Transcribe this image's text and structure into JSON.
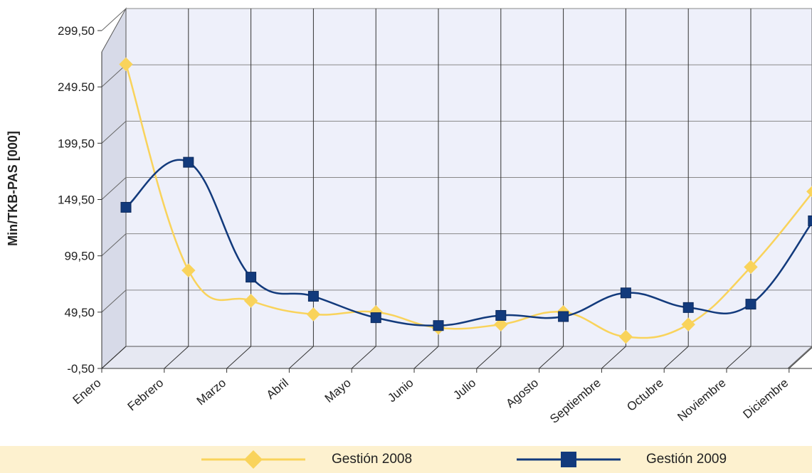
{
  "chart_data": {
    "type": "line",
    "ylabel": "Min/TKB-PAS [000]",
    "xlabel": "",
    "categories": [
      "Enero",
      "Febrero",
      "Marzo",
      "Abril",
      "Mayo",
      "Junio",
      "Julio",
      "Agosto",
      "Septiembre",
      "Octubre",
      "Noviembre",
      "Diciembre"
    ],
    "y_ticks": [
      "-0,50",
      "49,50",
      "99,50",
      "149,50",
      "199,50",
      "249.50",
      "299,50"
    ],
    "ylim": [
      -0.5,
      299.5
    ],
    "grid": true,
    "legend_position": "bottom",
    "series": [
      {
        "name": "Gestión 2008",
        "color": "#f9d35b",
        "marker": "diamond",
        "values": [
          250,
          67,
          40,
          28,
          30,
          16,
          19,
          30,
          8,
          19,
          70,
          137
        ]
      },
      {
        "name": "Gestión 2009",
        "color": "#123a7c",
        "marker": "square",
        "values": [
          123,
          163,
          61,
          44,
          25,
          18,
          27,
          26,
          47,
          34,
          37,
          111
        ]
      }
    ]
  }
}
